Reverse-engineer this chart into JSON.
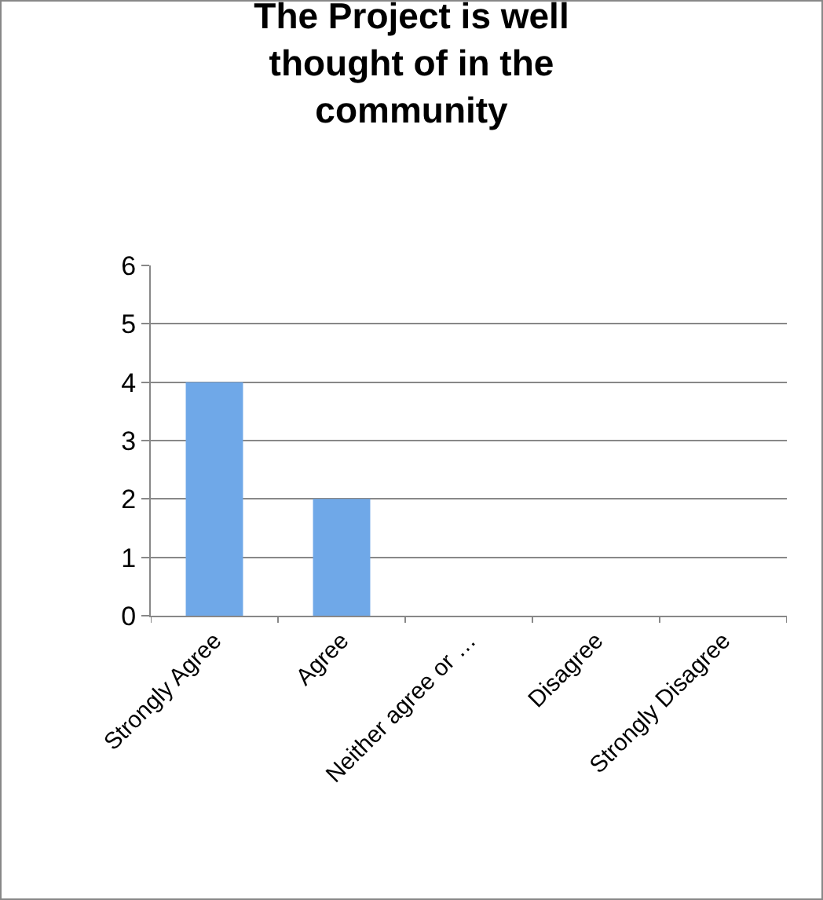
{
  "chart_data": {
    "type": "bar",
    "title": "The Project is well thought of in the community",
    "categories": [
      "Strongly Agree",
      "Agree",
      "Neither agree or …",
      "Disagree",
      "Strongly Disagree"
    ],
    "values": [
      4,
      2,
      0,
      0,
      0
    ],
    "color": "#6fa8e8",
    "ylim": [
      0,
      6
    ],
    "yticks": [
      0,
      1,
      2,
      3,
      4,
      5,
      6
    ],
    "grid": "y",
    "legend": false
  }
}
